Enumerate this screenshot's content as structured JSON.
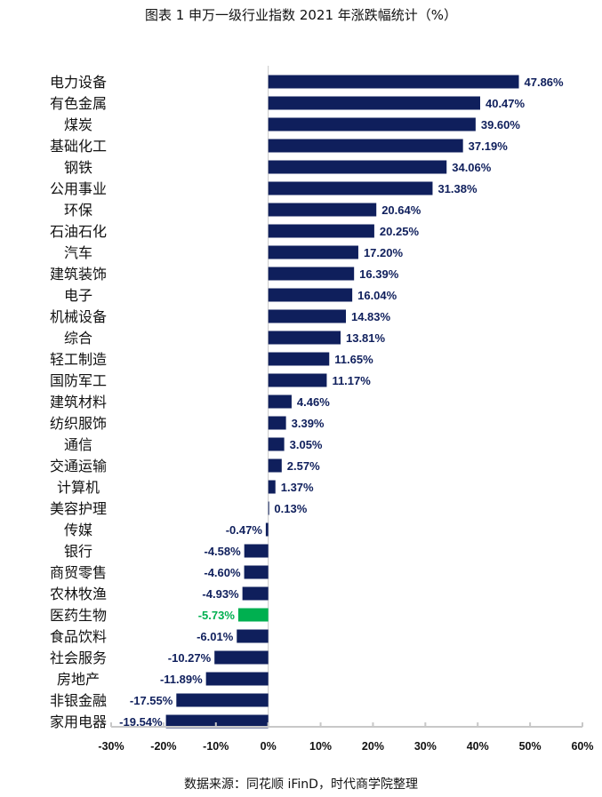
{
  "title": "图表 1 申万一级行业指数 2021 年涨跌幅统计（%）",
  "source": "数据来源：同花顺 iFinD，时代商学院整理",
  "colors": {
    "bar": "#0f1f5c",
    "highlight": "#00b050",
    "axis": "#c8c8c8"
  },
  "chart_data": {
    "type": "bar",
    "orientation": "horizontal",
    "title": "图表 1 申万一级行业指数 2021 年涨跌幅统计（%）",
    "categories": [
      "电力设备",
      "有色金属",
      "煤炭",
      "基础化工",
      "钢铁",
      "公用事业",
      "环保",
      "石油石化",
      "汽车",
      "建筑装饰",
      "电子",
      "机械设备",
      "综合",
      "轻工制造",
      "国防军工",
      "建筑材料",
      "纺织服饰",
      "通信",
      "交通运输",
      "计算机",
      "美容护理",
      "传媒",
      "银行",
      "商贸零售",
      "农林牧渔",
      "医药生物",
      "食品饮料",
      "社会服务",
      "房地产",
      "非银金融",
      "家用电器"
    ],
    "values": [
      47.86,
      40.47,
      39.6,
      37.19,
      34.06,
      31.38,
      20.64,
      20.25,
      17.2,
      16.39,
      16.04,
      14.83,
      13.81,
      11.65,
      11.17,
      4.46,
      3.39,
      3.05,
      2.57,
      1.37,
      0.13,
      -0.47,
      -4.58,
      -4.6,
      -4.93,
      -5.73,
      -6.01,
      -10.27,
      -11.89,
      -17.55,
      -19.54
    ],
    "data_labels": [
      "47.86%",
      "40.47%",
      "39.60%",
      "37.19%",
      "34.06%",
      "31.38%",
      "20.64%",
      "20.25%",
      "17.20%",
      "16.39%",
      "16.04%",
      "14.83%",
      "13.81%",
      "11.65%",
      "11.17%",
      "4.46%",
      "3.39%",
      "3.05%",
      "2.57%",
      "1.37%",
      "0.13%",
      "-0.47%",
      "-4.58%",
      "-4.60%",
      "-4.93%",
      "-5.73%",
      "-6.01%",
      "-10.27%",
      "-11.89%",
      "-17.55%",
      "-19.54%"
    ],
    "highlight": "医药生物",
    "xlim": [
      -30,
      60
    ],
    "xticks": [
      "-30%",
      "-20%",
      "-10%",
      "0%",
      "10%",
      "20%",
      "30%",
      "40%",
      "50%",
      "60%"
    ],
    "xtick_values": [
      -30,
      -20,
      -10,
      0,
      10,
      20,
      30,
      40,
      50,
      60
    ],
    "grid": false,
    "legend": "none"
  }
}
